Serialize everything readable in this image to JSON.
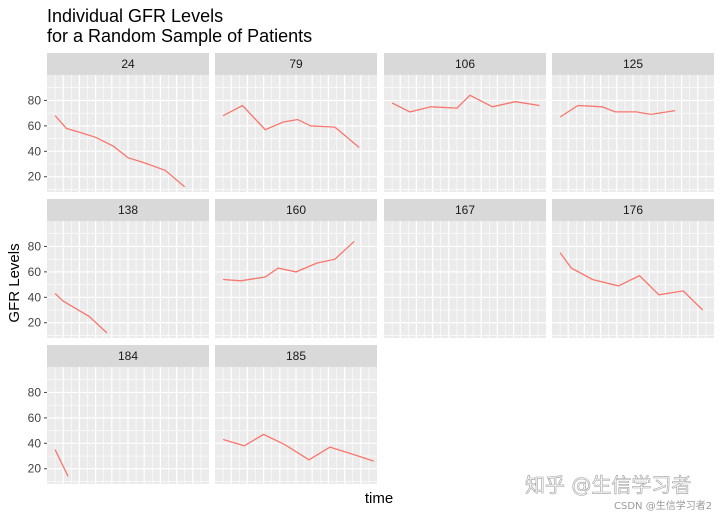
{
  "chart_data": {
    "type": "line",
    "title_lines": [
      "Individual GFR Levels",
      "for a Random Sample of Patients"
    ],
    "xlabel": "time",
    "ylabel": "GFR Levels",
    "ylim": [
      8,
      100
    ],
    "yticks": [
      20,
      40,
      60,
      80
    ],
    "xlim": [
      0,
      10
    ],
    "facet_layout": {
      "columns": 4,
      "rows": 3
    },
    "line_color": "#F8766D",
    "panel_background": "#EBEBEB",
    "strip_background": "#D9D9D9",
    "grid": true,
    "series": [
      {
        "name": "24",
        "x": [
          0.5,
          1.2,
          2.0,
          3.0,
          4.1,
          5.0,
          6.0,
          7.3,
          8.5
        ],
        "y": [
          68,
          58,
          55,
          51,
          44,
          35,
          31,
          25,
          12
        ]
      },
      {
        "name": "79",
        "x": [
          0.5,
          1.7,
          3.1,
          4.2,
          5.1,
          5.9,
          7.4,
          8.9
        ],
        "y": [
          68,
          76,
          57,
          63,
          65,
          60,
          59,
          43
        ]
      },
      {
        "name": "106",
        "x": [
          0.5,
          1.6,
          2.9,
          4.5,
          5.3,
          6.7,
          8.1,
          9.6
        ],
        "y": [
          78,
          71,
          75,
          74,
          84,
          75,
          79,
          76
        ]
      },
      {
        "name": "125",
        "x": [
          0.5,
          1.6,
          3.1,
          3.9,
          5.2,
          6.1,
          7.6
        ],
        "y": [
          67,
          76,
          75,
          71,
          71,
          69,
          72
        ]
      },
      {
        "name": "138",
        "x": [
          0.5,
          1.0,
          2.6,
          3.7
        ],
        "y": [
          43,
          37,
          25,
          12
        ]
      },
      {
        "name": "160",
        "x": [
          0.5,
          1.6,
          3.1,
          3.9,
          5.0,
          6.3,
          7.4,
          8.6
        ],
        "y": [
          54,
          53,
          56,
          63,
          60,
          67,
          70,
          84
        ]
      },
      {
        "name": "167",
        "x": [],
        "y": []
      },
      {
        "name": "176",
        "x": [
          0.5,
          1.2,
          2.5,
          4.1,
          5.4,
          6.6,
          8.1,
          9.3
        ],
        "y": [
          75,
          63,
          54,
          49,
          57,
          42,
          45,
          30
        ]
      },
      {
        "name": "184",
        "x": [
          0.5,
          1.3
        ],
        "y": [
          35,
          14
        ]
      },
      {
        "name": "185",
        "x": [
          0.5,
          1.8,
          3.0,
          4.3,
          5.8,
          7.1,
          8.6,
          9.8
        ],
        "y": [
          43,
          38,
          47,
          39,
          27,
          37,
          31,
          26
        ]
      }
    ]
  },
  "watermark": {
    "main": "知乎 @生信学习者",
    "sub": "CSDN @生信学习者2"
  }
}
